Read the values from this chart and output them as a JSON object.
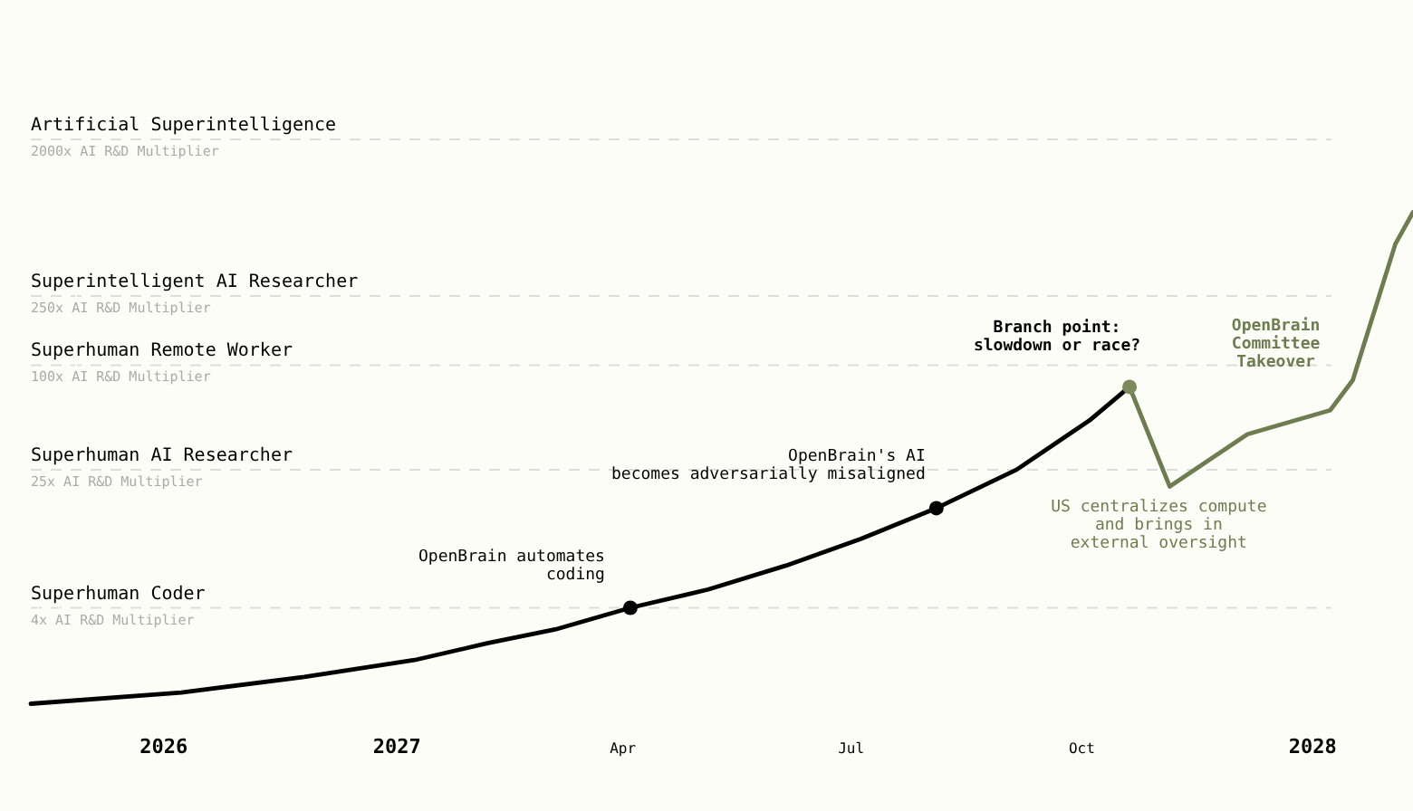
{
  "chart_data": {
    "type": "line",
    "log": "y",
    "xlim": [
      "2026-08-08",
      "2028-02-10"
    ],
    "xticks": [
      {
        "value": "2026-09-30",
        "label": "2026"
      },
      {
        "value": "2027-01-01",
        "label": "2027"
      },
      {
        "value": "2027-04-01",
        "label": "Apr"
      },
      {
        "value": "2027-07-01",
        "label": "Jul"
      },
      {
        "value": "2027-10-01",
        "label": "Oct"
      },
      {
        "value": "2028-01-01",
        "label": "2028"
      }
    ],
    "ylim": [
      0.27,
      12700
    ],
    "yticks": [
      {
        "value": 4,
        "label": "4x AI R&D Multiplier"
      },
      {
        "value": 25,
        "label": "25x AI R&D Multiplier"
      },
      {
        "value": 100,
        "label": "100x AI R&D Multiplier"
      },
      {
        "value": 250,
        "label": "250x AI R&D Multiplier"
      },
      {
        "value": 2000,
        "label": "2000x AI R&D Multiplier"
      }
    ],
    "ref_lines": [
      {
        "axis": "y",
        "value": 4,
        "label": "Superhuman Coder",
        "color": "#dddddd",
        "line_style": "dashed"
      },
      {
        "axis": "y",
        "value": 25,
        "label": "Superhuman AI Researcher",
        "color": "#dddddd",
        "line_style": "dashed"
      },
      {
        "axis": "y",
        "value": 100,
        "label": "Superhuman Remote Worker",
        "color": "#dddddd",
        "line_style": "dashed"
      },
      {
        "axis": "y",
        "value": 250,
        "label": "Superintelligent AI Researcher",
        "color": "#dddddd",
        "line_style": "dashed"
      },
      {
        "axis": "y",
        "value": 2000,
        "label": "Artificial Superintelligence",
        "color": "#dddddd",
        "line_style": "dashed"
      }
    ],
    "series": [
      {
        "color": "#000000",
        "x": [
          "2026-08-08",
          "2026-10-07",
          "2026-11-25",
          "2027-01-08",
          "2027-02-06",
          "2027-03-05",
          "2027-04-04",
          "2027-05-05",
          "2027-06-05",
          "2027-07-05",
          "2027-08-04",
          "2027-09-05",
          "2027-10-04",
          "2027-10-20"
        ],
        "values": [
          1.12,
          1.3,
          1.6,
          2.0,
          2.5,
          3.0,
          4,
          5.1,
          7.0,
          10,
          15,
          25,
          48,
          75
        ]
      },
      {
        "color": "#6e7d4f",
        "x": [
          "2027-10-20",
          "2027-11-05",
          "2027-12-06",
          "2028-01-08",
          "2028-01-17",
          "2028-02-03",
          "2028-02-10"
        ],
        "values": [
          75,
          20,
          40,
          55,
          82,
          500,
          760
        ]
      },
      {
        "type": "scatter",
        "colors": [
          "#000000",
          "#000000",
          "#7c8a5c"
        ],
        "x": [
          "2027-04-04",
          "2027-08-04",
          "2027-10-20"
        ],
        "values": [
          4,
          15,
          75
        ]
      }
    ],
    "annotations": [
      {
        "text": "OpenBrain automates\ncoding",
        "x": "2027-04-04",
        "y": 4
      },
      {
        "text": "OpenBrain's AI\nbecomes adversarially misaligned",
        "x": "2027-08-04",
        "y": 15
      },
      {
        "text": "Branch point:\nslowdown or race?",
        "x": "2027-10-20",
        "y": 75
      },
      {
        "text": "US centralizes compute\nand brings in\nexternal oversight",
        "x": "2027-11-05",
        "y": 20
      },
      {
        "text": "OpenBrain\nCommittee\nTakeover",
        "x": "2028-01-08",
        "y": 55
      }
    ]
  }
}
